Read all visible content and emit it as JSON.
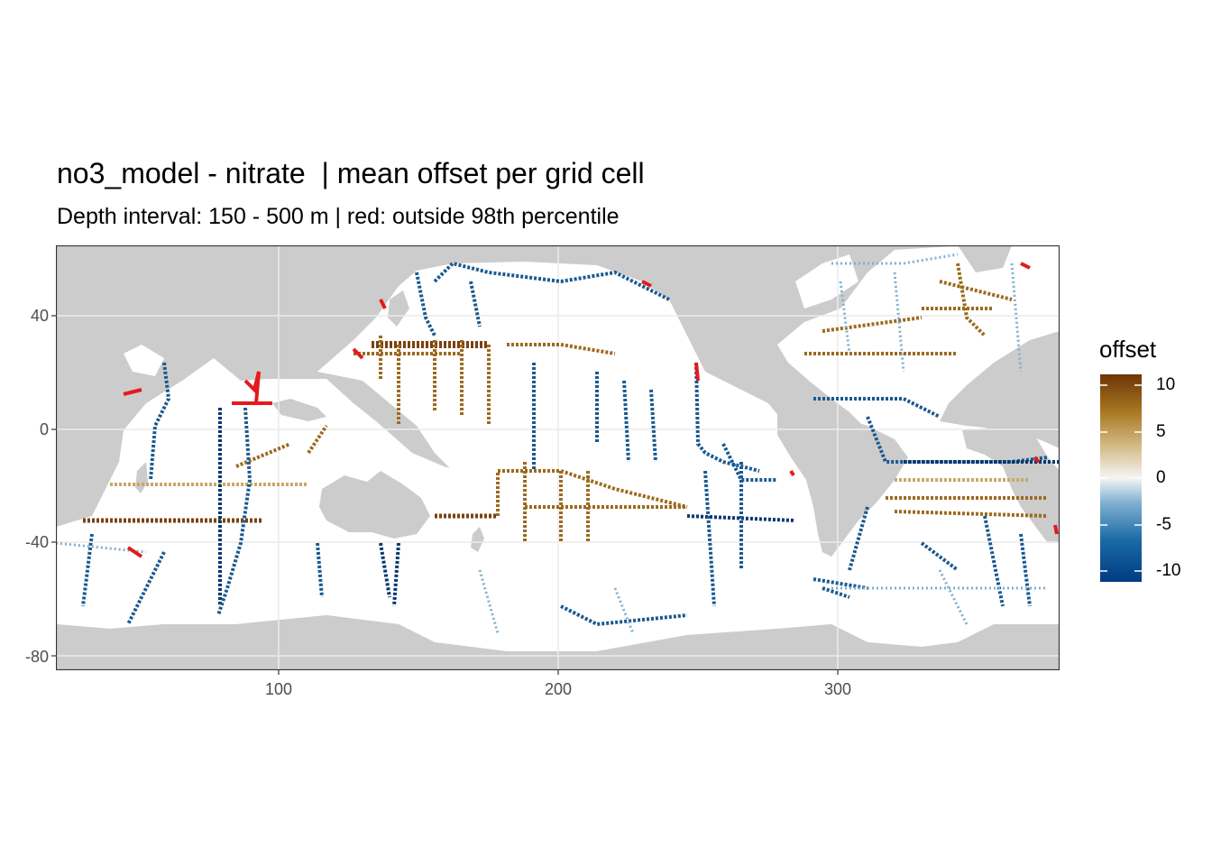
{
  "title": "no3_model - nitrate  | mean offset per grid cell",
  "subtitle": "Depth interval: 150 - 500 m | red: outside 98th percentile",
  "legend": {
    "title": "offset",
    "labels": [
      "10",
      "5",
      "0",
      "-5",
      "-10"
    ],
    "colors": [
      "#003c82",
      "#1a6aa6",
      "#7fb0d0",
      "#f5f5f5",
      "#d4bc8a",
      "#a87820",
      "#6e3408"
    ]
  },
  "axes": {
    "x_ticks": [
      "100",
      "200",
      "300"
    ],
    "y_ticks": [
      "40",
      "0",
      "-40",
      "-80"
    ]
  },
  "colors": {
    "land": "#cccccc",
    "ocean": "#ffffff",
    "positive": "#9c6a1e",
    "strong_positive": "#7a4210",
    "negative": "#1a5a90",
    "strong_negative": "#07386e",
    "outlier": "#e41a1c"
  }
}
